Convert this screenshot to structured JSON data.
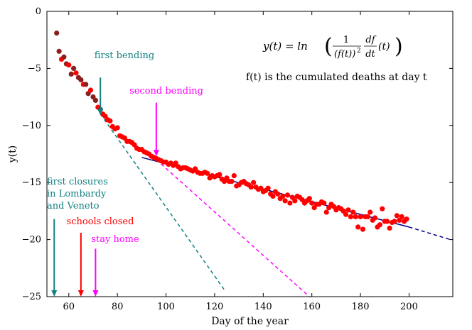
{
  "chart_data": {
    "type": "scatter",
    "title": "",
    "xlabel": "Day of the year",
    "ylabel": "y(t)",
    "xlim": [
      51,
      218
    ],
    "ylim": [
      -25,
      0
    ],
    "xticks": [
      60,
      80,
      100,
      120,
      140,
      160,
      180,
      200
    ],
    "yticks": [
      0,
      -5,
      -10,
      -15,
      -20,
      -25
    ],
    "grid": false,
    "formula": {
      "lhs": "y(t) = ln",
      "frac_num": "1",
      "frac_den": "(f(t))",
      "frac_den_exp": "2",
      "deriv_num": "df",
      "deriv_den": "dt",
      "tail": "(t)"
    },
    "note": "f(t) is the cumulated deaths at day t",
    "colors": {
      "points": "#ff0000",
      "points_old": "#8b1e1e",
      "fit_main": "#00008b",
      "first_bending": "#138080",
      "second_bending": "#ff00ff",
      "schools": "#ff0000"
    },
    "annotations": [
      {
        "label": "first bending",
        "x": 73,
        "y_from": -5.8,
        "y_to": -9.1,
        "color": "#138080",
        "lines": [
          "first bending"
        ]
      },
      {
        "label": "second bending",
        "x": 96,
        "y_from": -8.0,
        "y_to": -12.7,
        "color": "#ff00ff",
        "lines": [
          "second bending"
        ]
      },
      {
        "label": "first closures",
        "x": 54,
        "y_from": -18.2,
        "y_to": -25,
        "color": "#138080",
        "lines": [
          "first closures",
          "in Lombardy",
          "and Veneto"
        ]
      },
      {
        "label": "schools closed",
        "x": 65,
        "y_from": -19.4,
        "y_to": -25,
        "color": "#ff0000",
        "lines": [
          "schools closed"
        ]
      },
      {
        "label": "stay home",
        "x": 71,
        "y_from": -20.8,
        "y_to": -25,
        "color": "#ff00ff",
        "lines": [
          "stay home"
        ]
      }
    ],
    "fit_lines": [
      {
        "name": "first bending fit",
        "style": "dashed",
        "color": "#138080",
        "x": [
          73,
          124
        ],
        "y": [
          -9.0,
          -24.4
        ]
      },
      {
        "name": "second bending fit",
        "style": "dashed",
        "color": "#ff00ff",
        "x": [
          96,
          159
        ],
        "y": [
          -13.0,
          -25.0
        ]
      },
      {
        "name": "late fit",
        "style": "solid",
        "color": "#00008b",
        "x": [
          90,
          200
        ],
        "y": [
          -12.8,
          -18.9
        ]
      },
      {
        "name": "late fit extrapolation",
        "style": "dashed",
        "color": "#00008b",
        "x": [
          200,
          217
        ],
        "y": [
          -18.9,
          -20.0
        ]
      }
    ],
    "series": [
      {
        "name": "y(t) data",
        "points": [
          [
            55,
            -1.9
          ],
          [
            56,
            -3.5
          ],
          [
            57,
            -4.2
          ],
          [
            58,
            -4.0
          ],
          [
            59,
            -4.6
          ],
          [
            60,
            -4.7
          ],
          [
            61,
            -5.5
          ],
          [
            62,
            -5.0
          ],
          [
            63,
            -5.4
          ],
          [
            64,
            -5.8
          ],
          [
            65,
            -6.0
          ],
          [
            66,
            -6.4
          ],
          [
            67,
            -6.4
          ],
          [
            68,
            -7.2
          ],
          [
            69,
            -6.9
          ],
          [
            70,
            -7.5
          ],
          [
            71,
            -7.8
          ],
          [
            72,
            -8.4
          ],
          [
            73,
            -8.6
          ],
          [
            74,
            -9.0
          ],
          [
            75,
            -9.2
          ],
          [
            76,
            -9.5
          ],
          [
            77,
            -9.6
          ],
          [
            78,
            -10.1
          ],
          [
            79,
            -10.3
          ],
          [
            80,
            -10.2
          ],
          [
            81,
            -10.9
          ],
          [
            82,
            -11.0
          ],
          [
            83,
            -11.1
          ],
          [
            84,
            -11.4
          ],
          [
            85,
            -11.4
          ],
          [
            86,
            -11.5
          ],
          [
            87,
            -11.7
          ],
          [
            88,
            -12.0
          ],
          [
            89,
            -12.1
          ],
          [
            90,
            -12.1
          ],
          [
            91,
            -12.3
          ],
          [
            92,
            -12.4
          ],
          [
            93,
            -12.5
          ],
          [
            94,
            -12.7
          ],
          [
            95,
            -12.8
          ],
          [
            96,
            -12.9
          ],
          [
            97,
            -13.0
          ],
          [
            98,
            -13.1
          ],
          [
            99,
            -13.2
          ],
          [
            100,
            -13.2
          ],
          [
            101,
            -13.4
          ],
          [
            102,
            -13.3
          ],
          [
            103,
            -13.5
          ],
          [
            104,
            -13.3
          ],
          [
            105,
            -13.6
          ],
          [
            106,
            -13.8
          ],
          [
            107,
            -13.7
          ],
          [
            108,
            -13.7
          ],
          [
            109,
            -13.8
          ],
          [
            110,
            -13.9
          ],
          [
            111,
            -14.0
          ],
          [
            112,
            -13.8
          ],
          [
            113,
            -14.1
          ],
          [
            114,
            -14.2
          ],
          [
            115,
            -14.2
          ],
          [
            116,
            -14.1
          ],
          [
            117,
            -14.2
          ],
          [
            118,
            -14.6
          ],
          [
            119,
            -14.4
          ],
          [
            120,
            -14.5
          ],
          [
            121,
            -14.4
          ],
          [
            122,
            -14.3
          ],
          [
            123,
            -14.7
          ],
          [
            124,
            -14.9
          ],
          [
            125,
            -14.6
          ],
          [
            126,
            -14.9
          ],
          [
            127,
            -14.9
          ],
          [
            128,
            -14.4
          ],
          [
            129,
            -15.3
          ],
          [
            130,
            -15.2
          ],
          [
            131,
            -15.0
          ],
          [
            132,
            -14.9
          ],
          [
            133,
            -15.1
          ],
          [
            134,
            -15.2
          ],
          [
            135,
            -15.4
          ],
          [
            136,
            -15.0
          ],
          [
            137,
            -15.4
          ],
          [
            138,
            -15.6
          ],
          [
            139,
            -15.5
          ],
          [
            140,
            -15.8
          ],
          [
            141,
            -15.7
          ],
          [
            142,
            -15.5
          ],
          [
            143,
            -16.0
          ],
          [
            144,
            -16.2
          ],
          [
            145,
            -15.8
          ],
          [
            146,
            -16.0
          ],
          [
            147,
            -16.4
          ],
          [
            148,
            -16.2
          ],
          [
            149,
            -16.6
          ],
          [
            150,
            -16.1
          ],
          [
            151,
            -16.8
          ],
          [
            152,
            -16.3
          ],
          [
            153,
            -16.6
          ],
          [
            154,
            -16.2
          ],
          [
            155,
            -16.3
          ],
          [
            156,
            -16.5
          ],
          [
            157,
            -16.8
          ],
          [
            158,
            -16.6
          ],
          [
            159,
            -16.4
          ],
          [
            160,
            -16.8
          ],
          [
            161,
            -17.2
          ],
          [
            162,
            -16.9
          ],
          [
            163,
            -16.9
          ],
          [
            164,
            -16.7
          ],
          [
            165,
            -16.8
          ],
          [
            166,
            -17.6
          ],
          [
            167,
            -17.2
          ],
          [
            168,
            -16.9
          ],
          [
            169,
            -17.1
          ],
          [
            170,
            -17.4
          ],
          [
            171,
            -17.2
          ],
          [
            172,
            -17.3
          ],
          [
            173,
            -17.5
          ],
          [
            174,
            -17.8
          ],
          [
            175,
            -17.4
          ],
          [
            176,
            -18.0
          ],
          [
            177,
            -17.6
          ],
          [
            178,
            -18.0
          ],
          [
            179,
            -18.9
          ],
          [
            180,
            -18.0
          ],
          [
            181,
            -19.1
          ],
          [
            182,
            -18.0
          ],
          [
            183,
            -18.0
          ],
          [
            184,
            -17.6
          ],
          [
            185,
            -18.3
          ],
          [
            186,
            -18.1
          ],
          [
            187,
            -18.9
          ],
          [
            188,
            -18.7
          ],
          [
            189,
            -17.3
          ],
          [
            190,
            -18.4
          ],
          [
            191,
            -18.4
          ],
          [
            192,
            -19.0
          ],
          [
            193,
            -18.5
          ],
          [
            194,
            -18.4
          ],
          [
            195,
            -17.9
          ],
          [
            196,
            -18.3
          ],
          [
            197,
            -18.0
          ],
          [
            198,
            -18.4
          ],
          [
            199,
            -18.2
          ]
        ]
      }
    ]
  }
}
